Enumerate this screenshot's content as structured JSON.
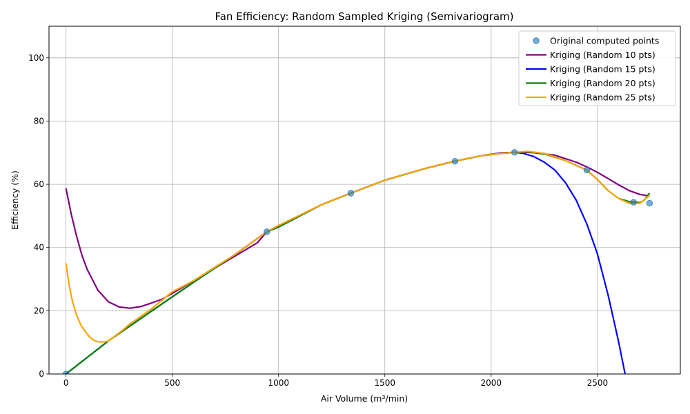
{
  "chart_data": {
    "type": "line",
    "title": "Fan Efficiency: Random Sampled Kriging (Semivariogram)",
    "xlabel": "Air Volume (m³/min)",
    "ylabel": "Efficiency (%)",
    "xlim": [
      -80,
      2890
    ],
    "ylim": [
      0,
      110
    ],
    "xticks": [
      0,
      500,
      1000,
      1500,
      2000,
      2500
    ],
    "yticks": [
      0,
      20,
      40,
      60,
      80,
      100
    ],
    "grid": true,
    "legend_position": "top-right",
    "points": {
      "name": "Original computed points",
      "color": "#1f77b4",
      "x": [
        0,
        945,
        1340,
        1830,
        2110,
        2450,
        2670,
        2745
      ],
      "y": [
        0,
        45,
        57.2,
        67.3,
        70.1,
        64.5,
        54.3,
        54.0
      ]
    },
    "series": [
      {
        "name": "Kriging (Random 10 pts)",
        "color": "#800080",
        "x": [
          0,
          25,
          50,
          75,
          100,
          150,
          200,
          250,
          300,
          350,
          400,
          450,
          500,
          600,
          700,
          800,
          900,
          945,
          1000,
          1100,
          1200,
          1340,
          1500,
          1700,
          1830,
          1950,
          2050,
          2110,
          2150,
          2200,
          2300,
          2400,
          2450,
          2500,
          2550,
          2600,
          2650,
          2700,
          2745
        ],
        "y": [
          58.7,
          50.5,
          43.5,
          37.5,
          33.0,
          26.5,
          22.8,
          21.2,
          20.8,
          21.3,
          22.4,
          23.6,
          25.5,
          29.5,
          33.5,
          37.5,
          41.5,
          45.0,
          46.5,
          50.0,
          53.5,
          57.2,
          61.3,
          65.2,
          67.3,
          69.0,
          70.0,
          70.1,
          70.1,
          70.0,
          69.2,
          67.0,
          65.5,
          63.8,
          61.8,
          59.8,
          58.0,
          56.8,
          56.3
        ]
      },
      {
        "name": "Kriging (Random 15 pts)",
        "color": "#0000ff",
        "x": [
          0,
          200,
          400,
          600,
          800,
          945,
          1000,
          1200,
          1340,
          1500,
          1700,
          1830,
          1950,
          2050,
          2110,
          2150,
          2200,
          2250,
          2300,
          2350,
          2400,
          2450,
          2500,
          2550,
          2600,
          2630
        ],
        "y": [
          0,
          10.5,
          19.8,
          29.0,
          38.0,
          45.0,
          46.5,
          53.5,
          57.2,
          61.3,
          65.2,
          67.3,
          69.0,
          69.8,
          70.1,
          69.8,
          68.8,
          67.0,
          64.5,
          60.5,
          55.0,
          47.5,
          38.0,
          25.0,
          10.0,
          0
        ]
      },
      {
        "name": "Kriging (Random 20 pts)",
        "color": "#008000",
        "x": [
          0,
          200,
          400,
          600,
          800,
          945,
          1000,
          1200,
          1340,
          1500,
          1700,
          1830,
          1950,
          2050,
          2110,
          2170,
          2250,
          2350,
          2450,
          2500,
          2550,
          2600,
          2650,
          2700,
          2720,
          2745
        ],
        "y": [
          0,
          10.5,
          19.8,
          29.0,
          38.0,
          45.0,
          46.5,
          53.5,
          57.2,
          61.3,
          65.2,
          67.3,
          69.0,
          69.8,
          70.1,
          70.3,
          69.6,
          67.5,
          64.5,
          61.5,
          58.0,
          55.5,
          54.5,
          54.2,
          55.0,
          57.2
        ]
      },
      {
        "name": "Kriging (Random 25 pts)",
        "color": "#ffa500",
        "x": [
          0,
          15,
          30,
          50,
          70,
          90,
          110,
          130,
          150,
          175,
          200,
          230,
          260,
          300,
          400,
          500,
          600,
          800,
          945,
          1000,
          1200,
          1340,
          1500,
          1700,
          1830,
          1950,
          2050,
          2110,
          2170,
          2250,
          2350,
          2450,
          2500,
          2550,
          2600,
          2650,
          2700,
          2745
        ],
        "y": [
          35.0,
          28.0,
          23.0,
          18.5,
          15.5,
          13.5,
          11.8,
          10.7,
          10.2,
          10.1,
          10.4,
          12.0,
          13.5,
          15.8,
          20.5,
          26.0,
          29.5,
          38.0,
          45.0,
          47.0,
          53.5,
          57.2,
          61.3,
          65.2,
          67.3,
          69.0,
          69.8,
          70.1,
          70.4,
          69.8,
          67.5,
          64.5,
          61.5,
          58.0,
          55.5,
          54.0,
          54.0,
          56.5
        ]
      }
    ]
  }
}
